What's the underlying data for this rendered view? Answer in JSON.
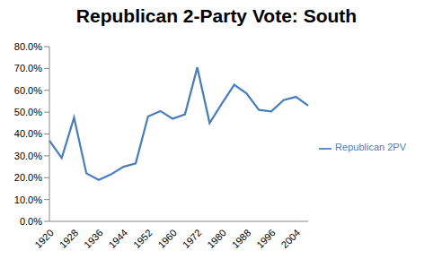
{
  "chart_data": {
    "type": "line",
    "title": "Republican 2-Party Vote: South",
    "categories": [
      "1920",
      null,
      "1928",
      null,
      "1936",
      null,
      "1944",
      null,
      "1952",
      null,
      "1960",
      null,
      "1972",
      null,
      "1980",
      null,
      "1988",
      null,
      "1996",
      null,
      "2004",
      null
    ],
    "series": [
      {
        "name": "Republican 2PV",
        "color": "#4a7ebb",
        "values": [
          37,
          29,
          47.5,
          22,
          19,
          21.5,
          25,
          26.5,
          48,
          50.5,
          47,
          49,
          70.5,
          45,
          54,
          62.5,
          58.5,
          51,
          50.3,
          55.5,
          57,
          53
        ]
      }
    ],
    "ylim": [
      0,
      80
    ],
    "yticks": [
      {
        "value": 0,
        "label": "0.0%"
      },
      {
        "value": 10,
        "label": "10.0%"
      },
      {
        "value": 20,
        "label": "20.0%"
      },
      {
        "value": 30,
        "label": "30.0%"
      },
      {
        "value": 40,
        "label": "40.0%"
      },
      {
        "value": 50,
        "label": "50.0%"
      },
      {
        "value": 60,
        "label": "60.0%"
      },
      {
        "value": 70,
        "label": "70.0%"
      },
      {
        "value": 80,
        "label": "80.0%"
      }
    ],
    "grid": false,
    "legend": "right"
  }
}
